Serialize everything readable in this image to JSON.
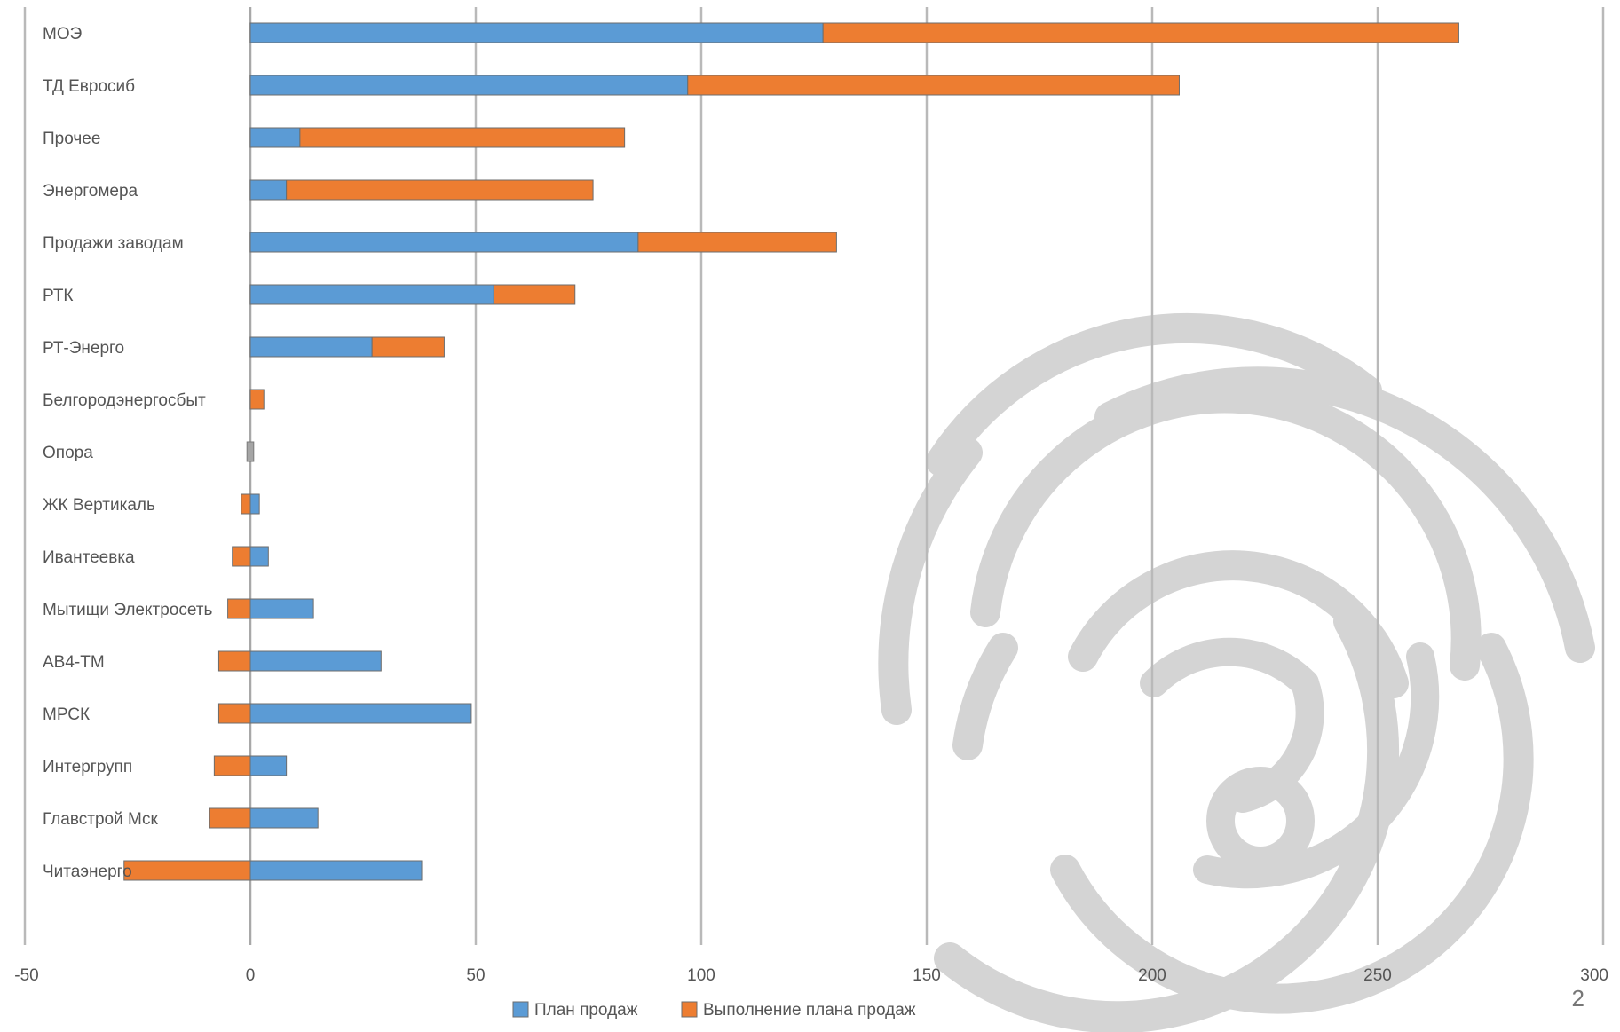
{
  "page_number": "2",
  "chart_data": {
    "type": "bar",
    "orientation": "horizontal",
    "stacked": true,
    "categories": [
      "МОЭ",
      "ТД Евросиб",
      "Прочее",
      "Энергомера",
      "Продажи заводам",
      "РТК",
      "РТ-Энерго",
      "Белгородэнергосбыт",
      "Опора",
      "ЖК Вертикаль",
      "Ивантеевка",
      "Мытищи Электросеть",
      "АВ4-ТМ",
      "МРСК",
      "Интергрупп",
      "Главстрой Мск",
      "Читаэнерго"
    ],
    "series": [
      {
        "name": "План продаж",
        "color": "#5b9bd5",
        "values": [
          127,
          97,
          11,
          8,
          86,
          54,
          27,
          0,
          0,
          2,
          4,
          14,
          29,
          49,
          8,
          15,
          38
        ]
      },
      {
        "name": "Выполнение плана продаж",
        "color": "#ed7d31",
        "values": [
          141,
          109,
          72,
          68,
          44,
          18,
          16,
          3,
          0,
          -2,
          -4,
          -5,
          -7,
          -7,
          -8,
          -9,
          -28
        ]
      }
    ],
    "extra_marks": [
      {
        "category": "Опора",
        "value": 1.5,
        "color": "#a5a5a5"
      }
    ],
    "xlim": [
      -50,
      300
    ],
    "xticks": [
      -50,
      0,
      50,
      100,
      150,
      200,
      250,
      300
    ],
    "grid": true,
    "legend_position": "bottom",
    "title": "",
    "xlabel": "",
    "ylabel": ""
  }
}
